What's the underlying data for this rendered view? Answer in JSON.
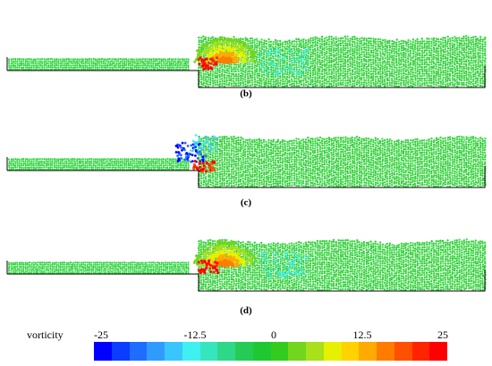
{
  "panels": [
    {
      "label": "(b)",
      "state": "impact"
    },
    {
      "label": "(c)",
      "state": "vortex"
    },
    {
      "label": "(d)",
      "state": "impact"
    }
  ],
  "colorbar": {
    "title": "vorticity",
    "ticks": [
      "-25",
      "-12.5",
      "0",
      "12.5",
      "25"
    ],
    "tick_values": [
      -25,
      -12.5,
      0,
      12.5,
      25
    ],
    "range": [
      -25,
      25
    ],
    "colors": [
      "#0000ff",
      "#0a3dff",
      "#1f6dff",
      "#2f9bff",
      "#39c6ff",
      "#3ff0f0",
      "#35e6bc",
      "#2ed889",
      "#24cc55",
      "#1ec832",
      "#33cc1e",
      "#74d61c",
      "#a8e01a",
      "#e6f000",
      "#ffd200",
      "#ffaa00",
      "#ff7c00",
      "#ff5000",
      "#ff2400",
      "#ff0000"
    ]
  }
}
